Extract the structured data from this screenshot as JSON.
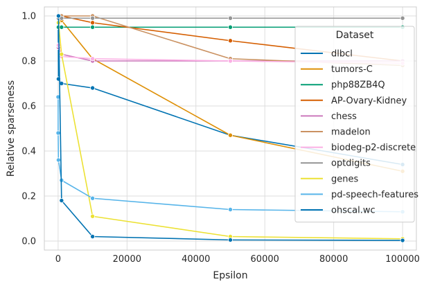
{
  "chart_data": {
    "type": "line",
    "xlabel": "Epsilon",
    "ylabel": "Relative sparseness",
    "xlim": [
      -4000,
      104000
    ],
    "ylim": [
      -0.04,
      1.04
    ],
    "xticks": [
      0,
      20000,
      40000,
      60000,
      80000,
      100000
    ],
    "xtick_labels": [
      "0",
      "20000",
      "40000",
      "60000",
      "80000",
      "100000"
    ],
    "yticks": [
      0.0,
      0.2,
      0.4,
      0.6,
      0.8,
      1.0
    ],
    "ytick_labels": [
      "0.0",
      "0.2",
      "0.4",
      "0.6",
      "0.8",
      "1.0"
    ],
    "grid": true,
    "legend_title": "Dataset",
    "legend_position": "right",
    "x": [
      1,
      10,
      100,
      1000,
      10000,
      50000,
      100000
    ],
    "series": [
      {
        "name": "dlbcl",
        "color": "#0173b2",
        "values": [
          1.0,
          1.0,
          0.72,
          0.7,
          0.68,
          0.47,
          0.34
        ]
      },
      {
        "name": "tumors-C",
        "color": "#de8f05",
        "values": [
          1.0,
          1.0,
          1.0,
          0.98,
          0.81,
          0.47,
          0.31
        ]
      },
      {
        "name": "php88ZB4Q",
        "color": "#029e73",
        "values": [
          0.95,
          0.95,
          0.95,
          0.95,
          0.95,
          0.95,
          0.95
        ]
      },
      {
        "name": "AP-Ovary-Kidney",
        "color": "#d55e00",
        "values": [
          1.0,
          1.0,
          1.0,
          1.0,
          0.97,
          0.89,
          0.8
        ]
      },
      {
        "name": "chess",
        "color": "#cc78bc",
        "values": [
          0.86,
          0.86,
          0.86,
          0.83,
          0.8,
          0.8,
          0.8
        ]
      },
      {
        "name": "madelon",
        "color": "#ca9161",
        "values": [
          1.0,
          1.0,
          1.0,
          1.0,
          1.0,
          0.81,
          0.78
        ]
      },
      {
        "name": "biodeg-p2-discrete",
        "color": "#fbafe4",
        "values": [
          0.87,
          0.87,
          0.87,
          0.82,
          0.81,
          0.8,
          0.79
        ]
      },
      {
        "name": "optdigits",
        "color": "#949494",
        "values": [
          0.99,
          0.99,
          0.99,
          0.99,
          0.99,
          0.99,
          0.99
        ]
      },
      {
        "name": "genes",
        "color": "#ece133",
        "values": [
          0.97,
          0.97,
          0.97,
          0.83,
          0.11,
          0.02,
          0.01
        ]
      },
      {
        "name": "pd-speech-features",
        "color": "#56b4e9",
        "values": [
          0.64,
          0.48,
          0.36,
          0.27,
          0.19,
          0.14,
          0.13
        ]
      },
      {
        "name": "ohscal.wc",
        "color": "#0173b2",
        "values": [
          1.0,
          1.0,
          1.0,
          0.18,
          0.02,
          0.005,
          0.003
        ]
      }
    ]
  }
}
